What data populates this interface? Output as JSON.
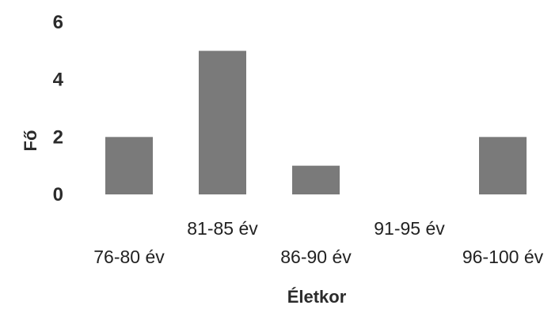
{
  "chart_data": {
    "type": "bar",
    "categories": [
      "76-80 év",
      "81-85 év",
      "86-90 év",
      "91-95 év",
      "96-100 év"
    ],
    "values": [
      2,
      5,
      1,
      0,
      2
    ],
    "ylabel": "Fő",
    "xlabel": "Életkor",
    "yticks": [
      0,
      2,
      4,
      6
    ],
    "ylim": [
      0,
      6
    ],
    "grid": false,
    "legend": "none",
    "bar_color": "#7a7a7a"
  }
}
